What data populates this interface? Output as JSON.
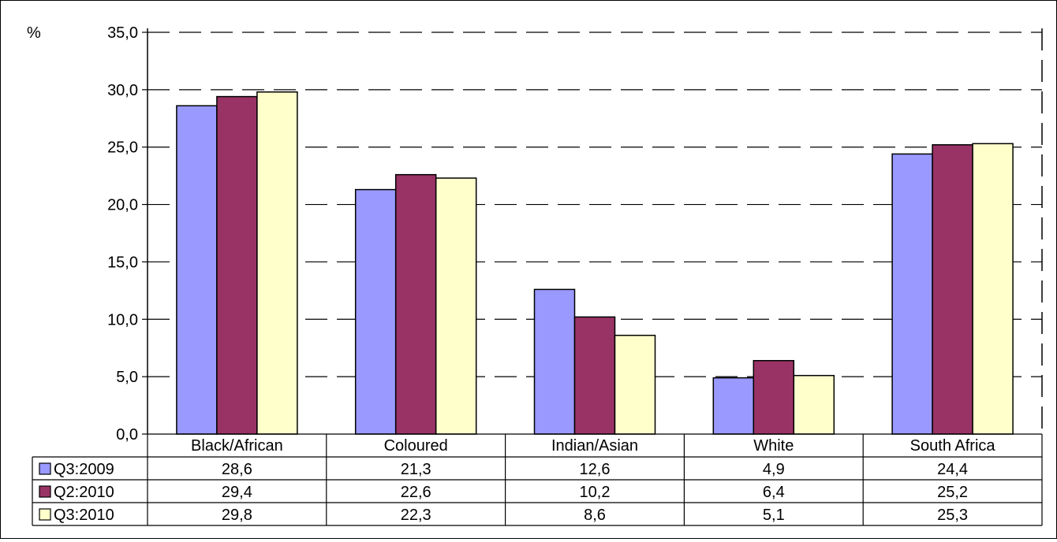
{
  "chart_data": {
    "type": "bar",
    "ylabel": "%",
    "ylim": [
      0,
      35
    ],
    "ytick_step": 5,
    "yticks": [
      "0,0",
      "5,0",
      "10,0",
      "15,0",
      "20,0",
      "25,0",
      "30,0",
      "35,0"
    ],
    "grid": true,
    "legend": "data-table",
    "categories": [
      "Black/African",
      "Coloured",
      "Indian/Asian",
      "White",
      "South Africa"
    ],
    "series": [
      {
        "name": "Q3:2009",
        "color": "#9999FF",
        "values": [
          28.6,
          21.3,
          12.6,
          4.9,
          24.4
        ],
        "labels": [
          "28,6",
          "21,3",
          "12,6",
          "4,9",
          "24,4"
        ]
      },
      {
        "name": "Q2:2010",
        "color": "#993366",
        "values": [
          29.4,
          22.6,
          10.2,
          6.4,
          25.2
        ],
        "labels": [
          "29,4",
          "22,6",
          "10,2",
          "6,4",
          "25,2"
        ]
      },
      {
        "name": "Q3:2010",
        "color": "#FFFFCC",
        "values": [
          29.8,
          22.3,
          8.6,
          5.1,
          25.3
        ],
        "labels": [
          "29,8",
          "22,3",
          "8,6",
          "5,1",
          "25,3"
        ]
      }
    ]
  }
}
